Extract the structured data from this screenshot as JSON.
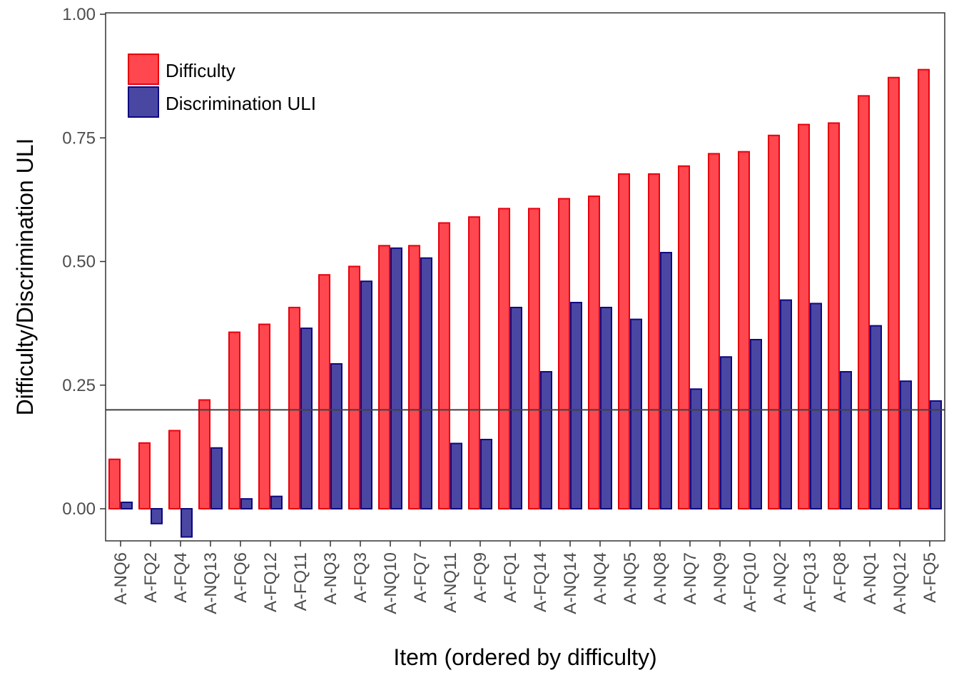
{
  "chart_data": {
    "type": "bar",
    "title": "",
    "xlabel": "Item (ordered by difficulty)",
    "ylabel": "Difficulty/Discrimination ULI",
    "ylim": [
      -0.065,
      1.0
    ],
    "yticks": [
      0.0,
      0.25,
      0.5,
      0.75,
      1.0
    ],
    "ytick_labels": [
      "0.00",
      "0.25",
      "0.50",
      "0.75",
      "1.00"
    ],
    "reference_line": 0.2,
    "grid": false,
    "legend_position": "top-left",
    "categories": [
      "A-NQ6",
      "A-FQ2",
      "A-FQ4",
      "A-NQ13",
      "A-FQ6",
      "A-FQ12",
      "A-FQ11",
      "A-NQ3",
      "A-FQ3",
      "A-NQ10",
      "A-FQ7",
      "A-NQ11",
      "A-FQ9",
      "A-FQ1",
      "A-FQ14",
      "A-NQ14",
      "A-NQ4",
      "A-NQ5",
      "A-NQ8",
      "A-NQ7",
      "A-NQ9",
      "A-FQ10",
      "A-NQ2",
      "A-FQ13",
      "A-FQ8",
      "A-NQ1",
      "A-NQ12",
      "A-FQ5"
    ],
    "series": [
      {
        "name": "Difficulty",
        "fill": "#ff474f",
        "stroke": "#e8000c",
        "values": [
          0.1,
          0.133,
          0.158,
          0.22,
          0.357,
          0.373,
          0.407,
          0.473,
          0.49,
          0.532,
          0.532,
          0.578,
          0.59,
          0.607,
          0.607,
          0.627,
          0.632,
          0.677,
          0.677,
          0.693,
          0.718,
          0.722,
          0.755,
          0.777,
          0.78,
          0.835,
          0.872,
          0.888
        ]
      },
      {
        "name": "Discrimination ULI",
        "fill": "#4a47a3",
        "stroke": "#0d0880",
        "values": [
          0.013,
          -0.03,
          -0.057,
          0.123,
          0.02,
          0.025,
          0.365,
          0.293,
          0.46,
          0.527,
          0.507,
          0.132,
          0.14,
          0.407,
          0.277,
          0.417,
          0.407,
          0.383,
          0.518,
          0.242,
          0.307,
          0.342,
          0.422,
          0.415,
          0.277,
          0.37,
          0.258,
          0.218
        ]
      }
    ]
  }
}
